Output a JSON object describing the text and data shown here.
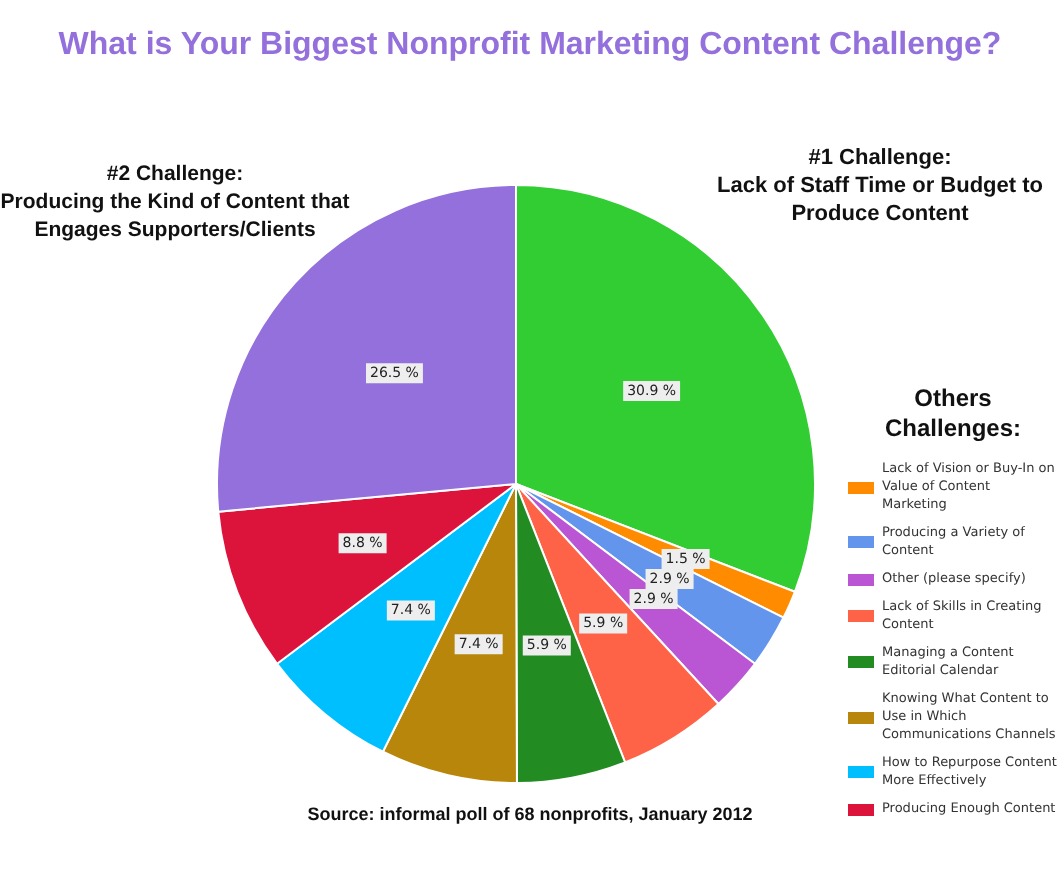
{
  "chart_data": {
    "type": "pie",
    "title": "What is Your Biggest Nonprofit Marketing Content Challenge?",
    "categories": [
      "Lack of Staff Time or Budget to Produce Content",
      "Lack of Vision or Buy-In on Value of Content Marketing",
      "Producing a Variety of Content",
      "Other (please specify)",
      "Lack of Skills in Creating Content",
      "Managing a Content Editorial Calendar",
      "Knowing What Content to Use in Which Communications Channels",
      "How to Repurpose Content More Effectively",
      "Producing Enough Content",
      "Producing the Kind of Content that Engages Supporters/Clients"
    ],
    "values": [
      30.9,
      1.5,
      2.9,
      2.9,
      5.9,
      5.9,
      7.4,
      7.4,
      8.8,
      26.5
    ],
    "colors": [
      "#32cd32",
      "#ff8c00",
      "#6495ed",
      "#ba55d3",
      "#ff6347",
      "#228b22",
      "#b8860b",
      "#00bfff",
      "#dc143c",
      "#9370db"
    ],
    "value_labels": [
      "30.9 %",
      "1.5 %",
      "2.9 %",
      "2.9 %",
      "5.9 %",
      "5.9 %",
      "7.4 %",
      "7.4 %",
      "8.8 %",
      "26.5 %"
    ],
    "legend": "right",
    "legend_title": "Others Challenges:",
    "annotations": [
      {
        "text": "#1 Challenge:",
        "x": "Lack of Staff Time or Budget to Produce Content"
      },
      {
        "text": "#2 Challenge:",
        "x": "Producing the Kind of Content that Engages Supporters/Clients"
      },
      "Source: informal poll of 68 nonprofits, January 2012"
    ]
  }
}
